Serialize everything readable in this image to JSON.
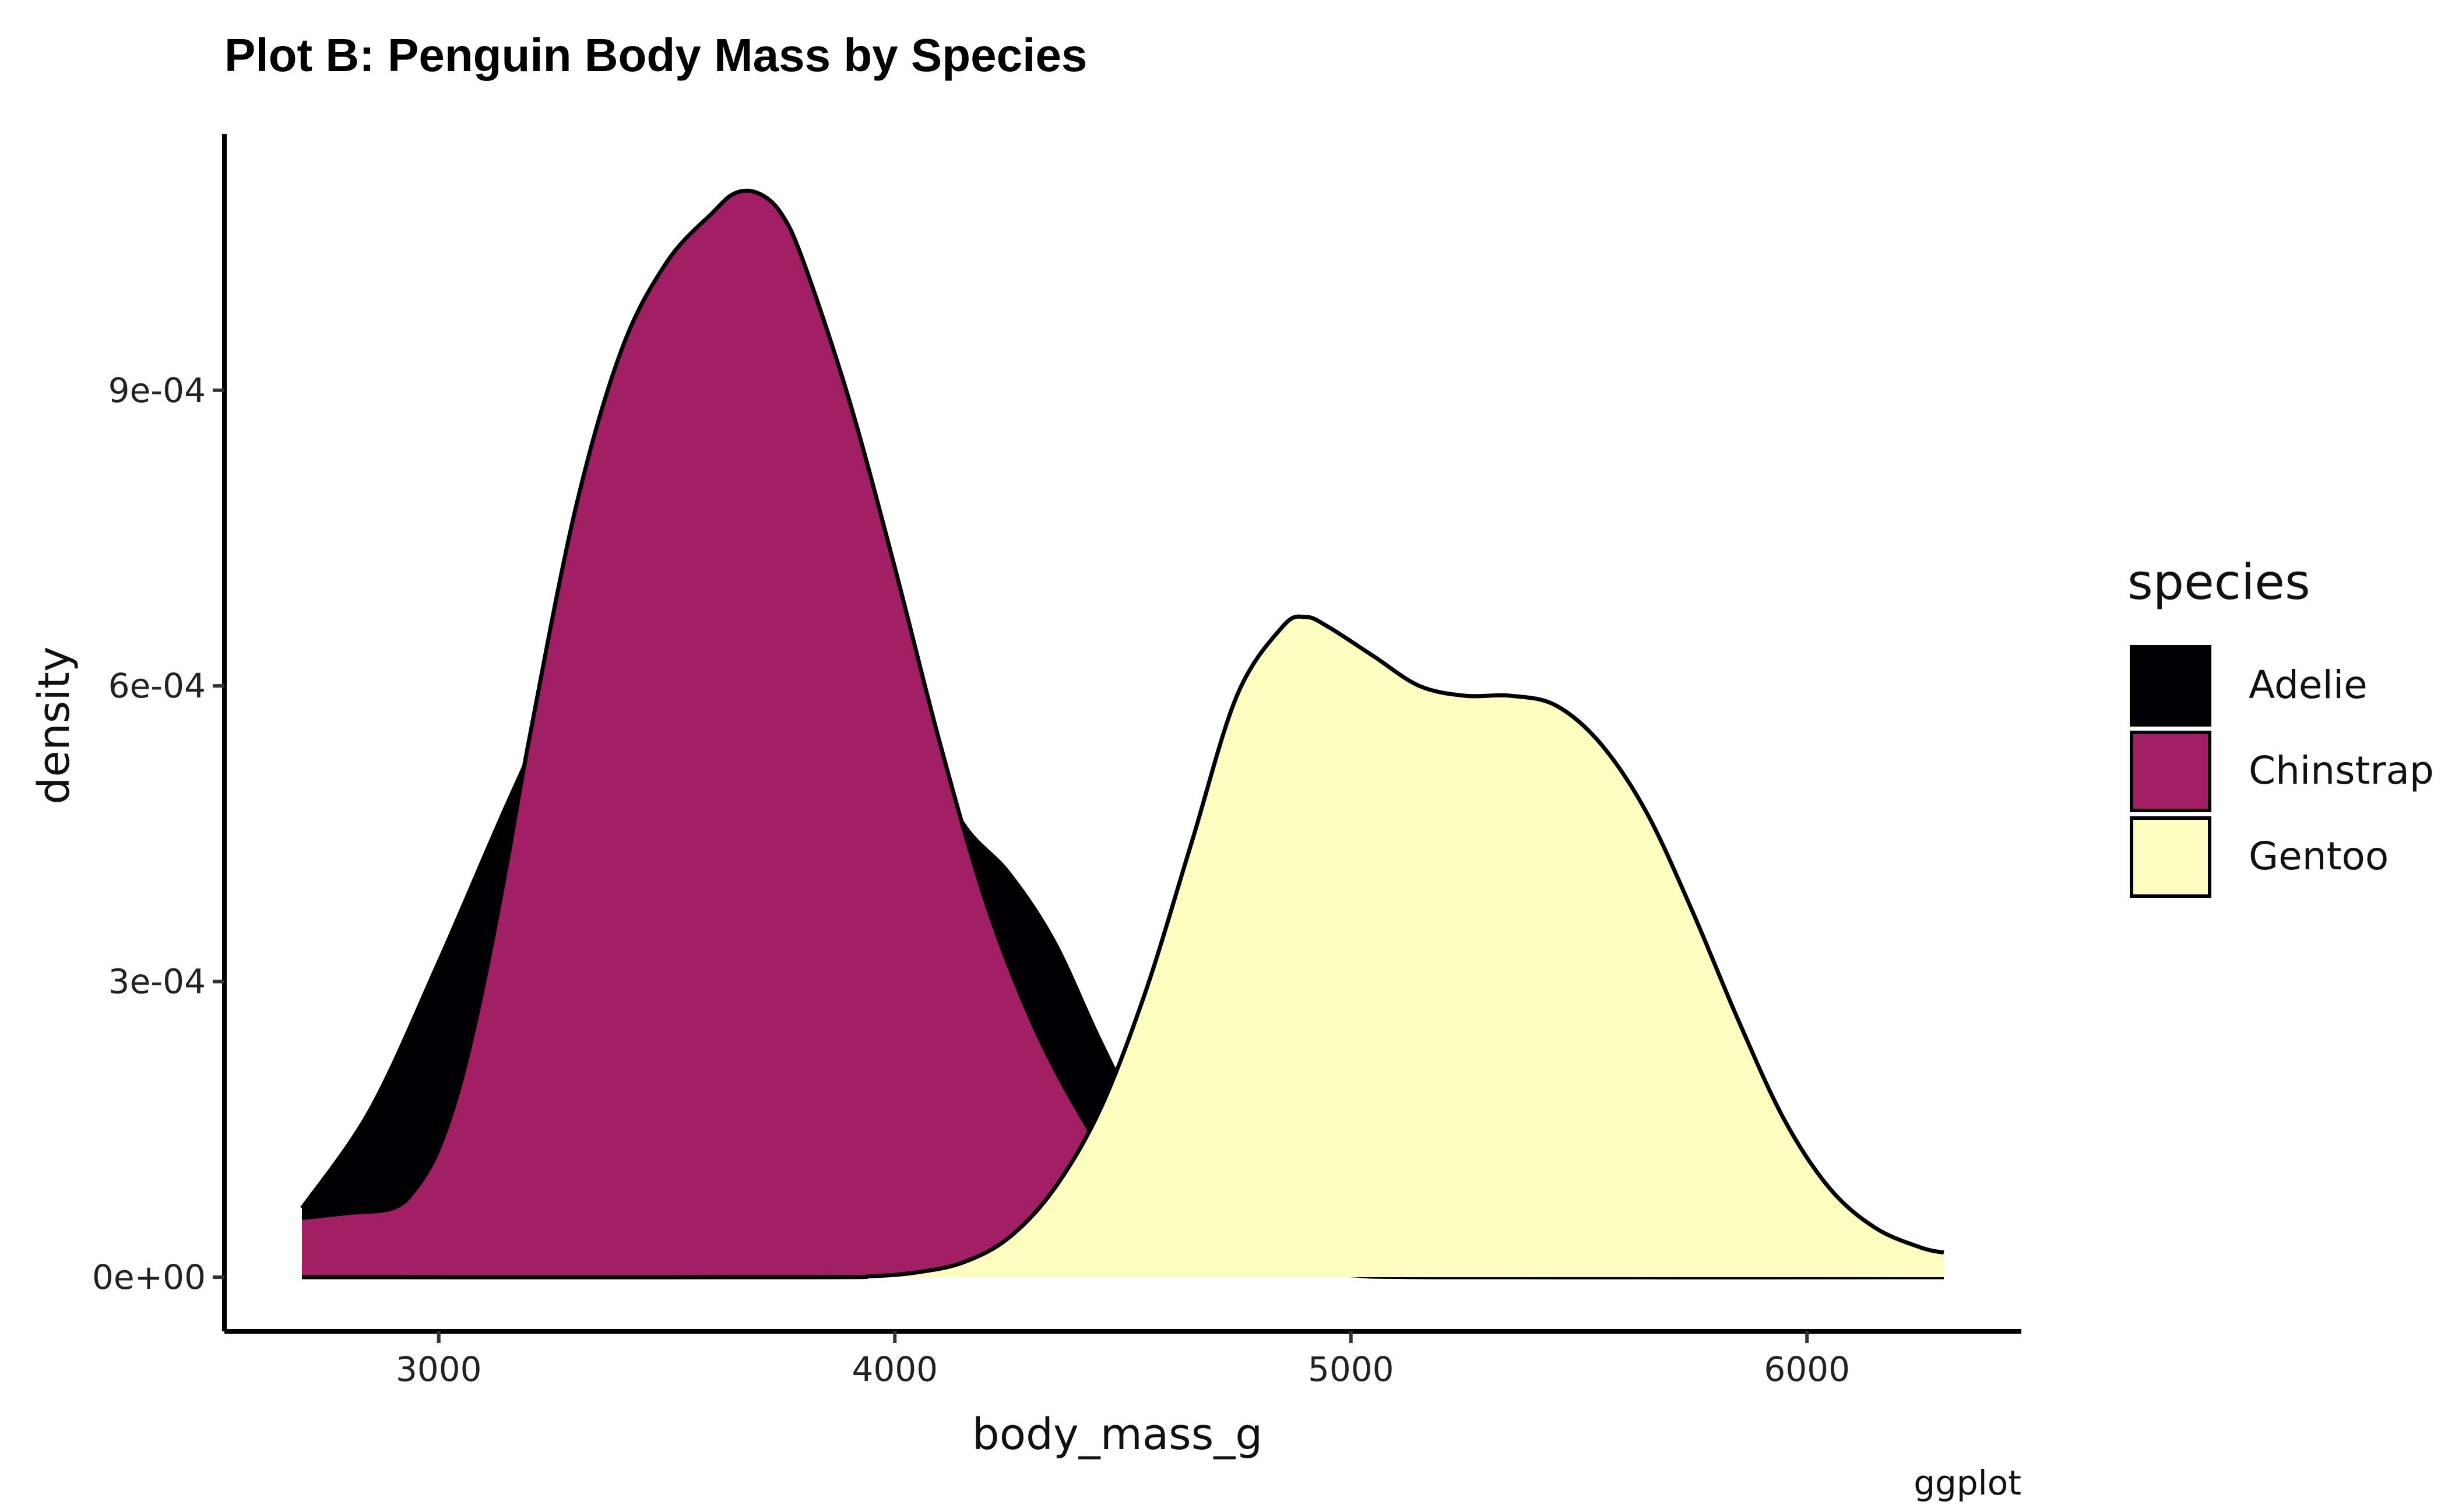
{
  "chart_data": {
    "type": "area",
    "title": "Plot B: Penguin Body Mass by Species",
    "xlabel": "body_mass_g",
    "ylabel": "density",
    "caption": "ggplot",
    "xlim": [
      2530,
      6470
    ],
    "ylim": [
      -5.5e-05,
      0.00116
    ],
    "x_ticks": [
      {
        "value": 3000,
        "label": "3000"
      },
      {
        "value": 4000,
        "label": "4000"
      },
      {
        "value": 5000,
        "label": "5000"
      },
      {
        "value": 6000,
        "label": "6000"
      }
    ],
    "y_ticks": [
      {
        "value": 0,
        "label": "0e+00"
      },
      {
        "value": 0.0003,
        "label": "3e-04"
      },
      {
        "value": 0.0006,
        "label": "6e-04"
      },
      {
        "value": 0.0009,
        "label": "9e-04"
      }
    ],
    "grid": false,
    "legend": {
      "title": "species",
      "position": "right"
    },
    "series": [
      {
        "name": "Adelie",
        "color": "#000004",
        "points": [
          [
            2700,
            7e-05
          ],
          [
            2850,
            0.00017
          ],
          [
            3000,
            0.00032
          ],
          [
            3150,
            0.00048
          ],
          [
            3300,
            0.00063
          ],
          [
            3450,
            0.00076
          ],
          [
            3550,
            0.00084
          ],
          [
            3650,
            0.00088
          ],
          [
            3750,
            0.00086
          ],
          [
            3850,
            0.00078
          ],
          [
            3950,
            0.00067
          ],
          [
            4050,
            0.00055
          ],
          [
            4150,
            0.00046
          ],
          [
            4250,
            0.00041
          ],
          [
            4350,
            0.00034
          ],
          [
            4450,
            0.00024
          ],
          [
            4550,
            0.00015
          ],
          [
            4650,
            9e-05
          ],
          [
            4750,
            5.5e-05
          ],
          [
            4850,
            3e-05
          ],
          [
            4950,
            1.5e-05
          ],
          [
            5050,
            7e-06
          ],
          [
            5150,
            3e-06
          ],
          [
            5300,
            1e-06
          ],
          [
            5500,
            0
          ],
          [
            6300,
            0
          ]
        ]
      },
      {
        "name": "Chinstrap",
        "color": "#A21F65",
        "points": [
          [
            2700,
            6e-05
          ],
          [
            2800,
            6.5e-05
          ],
          [
            2900,
            7e-05
          ],
          [
            2950,
            9e-05
          ],
          [
            3000,
            0.00013
          ],
          [
            3050,
            0.0002
          ],
          [
            3100,
            0.0003
          ],
          [
            3150,
            0.00042
          ],
          [
            3200,
            0.00055
          ],
          [
            3300,
            0.00078
          ],
          [
            3400,
            0.00094
          ],
          [
            3500,
            0.00103
          ],
          [
            3600,
            0.00108
          ],
          [
            3650,
            0.0011
          ],
          [
            3700,
            0.0011
          ],
          [
            3750,
            0.00108
          ],
          [
            3800,
            0.00103
          ],
          [
            3900,
            0.00089
          ],
          [
            4000,
            0.00072
          ],
          [
            4100,
            0.00054
          ],
          [
            4200,
            0.00038
          ],
          [
            4300,
            0.00026
          ],
          [
            4400,
            0.00017
          ],
          [
            4500,
            0.0001
          ],
          [
            4600,
            6e-05
          ],
          [
            4700,
            3e-05
          ],
          [
            4800,
            1.5e-05
          ],
          [
            4900,
            6e-06
          ],
          [
            5000,
            2e-06
          ],
          [
            5200,
            0
          ],
          [
            6300,
            0
          ]
        ]
      },
      {
        "name": "Gentoo",
        "color": "#FCFDBF",
        "points": [
          [
            2700,
            0
          ],
          [
            3800,
            0
          ],
          [
            3950,
            1e-06
          ],
          [
            4050,
            5e-06
          ],
          [
            4150,
            1.5e-05
          ],
          [
            4250,
            4e-05
          ],
          [
            4350,
            9e-05
          ],
          [
            4450,
            0.00017
          ],
          [
            4550,
            0.00029
          ],
          [
            4650,
            0.00044
          ],
          [
            4750,
            0.00059
          ],
          [
            4850,
            0.00066
          ],
          [
            4900,
            0.00067
          ],
          [
            4950,
            0.00066
          ],
          [
            5050,
            0.00063
          ],
          [
            5150,
            0.0006
          ],
          [
            5250,
            0.00059
          ],
          [
            5350,
            0.00059
          ],
          [
            5450,
            0.00058
          ],
          [
            5550,
            0.00054
          ],
          [
            5650,
            0.00047
          ],
          [
            5750,
            0.00037
          ],
          [
            5850,
            0.00026
          ],
          [
            5950,
            0.00016
          ],
          [
            6050,
            9e-05
          ],
          [
            6150,
            5e-05
          ],
          [
            6250,
            3e-05
          ],
          [
            6300,
            2.5e-05
          ]
        ]
      }
    ]
  }
}
